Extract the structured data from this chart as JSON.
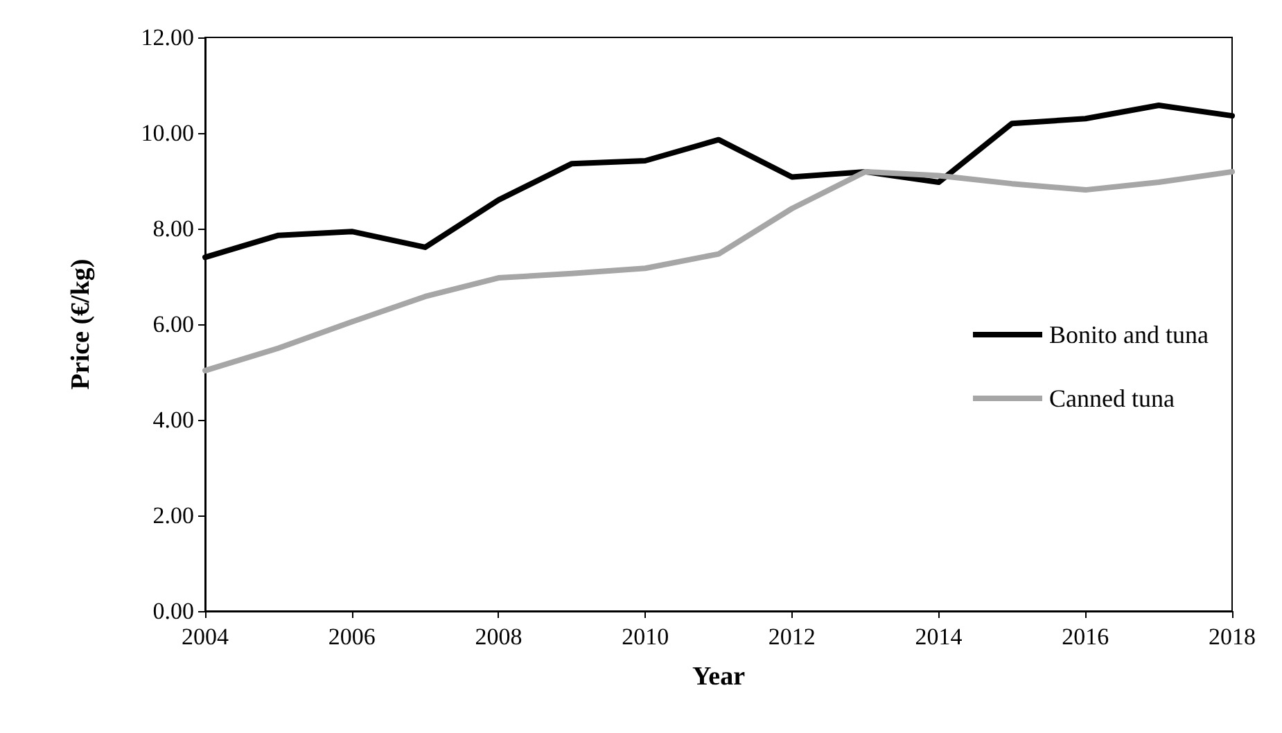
{
  "chart_data": {
    "type": "line",
    "xlabel": "Year",
    "ylabel": "Price (€/kg)",
    "x": [
      2004,
      2005,
      2006,
      2007,
      2008,
      2009,
      2010,
      2011,
      2012,
      2013,
      2014,
      2015,
      2016,
      2017,
      2018
    ],
    "series": [
      {
        "name": "Bonito and tuna",
        "color": "#000000",
        "values": [
          7.4,
          7.86,
          7.94,
          7.61,
          8.6,
          9.36,
          9.42,
          9.86,
          9.08,
          9.19,
          8.97,
          10.2,
          10.3,
          10.58,
          10.36
        ]
      },
      {
        "name": "Canned tuna",
        "color": "#a6a6a6",
        "values": [
          5.03,
          5.5,
          6.05,
          6.58,
          6.97,
          7.06,
          7.17,
          7.47,
          8.42,
          9.19,
          9.11,
          8.94,
          8.81,
          8.97,
          9.19
        ]
      }
    ],
    "xlim": [
      2004,
      2018
    ],
    "xticks": [
      2004,
      2006,
      2008,
      2010,
      2012,
      2014,
      2016,
      2018
    ],
    "ylim": [
      0,
      12
    ],
    "yticks": [
      {
        "value": 0,
        "label": "0.00"
      },
      {
        "value": 2,
        "label": "2.00"
      },
      {
        "value": 4,
        "label": "4.00"
      },
      {
        "value": 6,
        "label": "6.00"
      },
      {
        "value": 8,
        "label": "8.00"
      },
      {
        "value": 10,
        "label": "10.00"
      },
      {
        "value": 12,
        "label": "12.00"
      }
    ],
    "grid": false,
    "legend": "right",
    "marker": "none",
    "line_style": "solid"
  }
}
